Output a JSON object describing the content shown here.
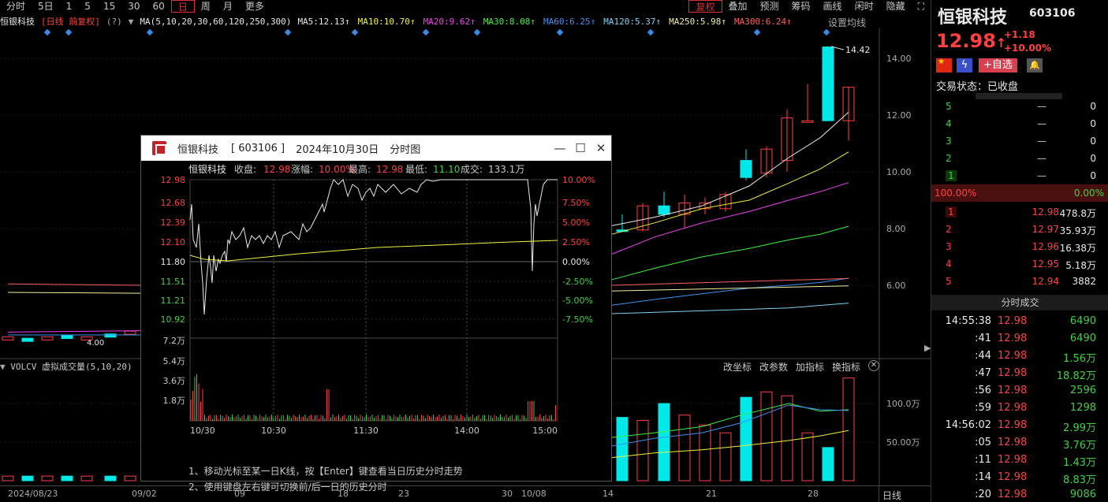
{
  "toolbar": {
    "left": [
      "分时",
      "5日",
      "1",
      "5",
      "15",
      "30",
      "60",
      "日",
      "周",
      "月",
      "更多"
    ],
    "active": "日",
    "right": [
      "复权",
      "叠加",
      "预测",
      "筹码",
      "画线",
      "闲时",
      "隐藏"
    ],
    "right_active": "复权"
  },
  "infoline": {
    "name": "恒银科技",
    "tags": "[日线 前复权]",
    "help": "(?)",
    "ma_label": "MA(5,10,20,30,60,120,250,300)",
    "ma": [
      {
        "label": "MA5:12.13↑",
        "color": "#e8e8e8"
      },
      {
        "label": "MA10:10.70↑",
        "color": "#f0f040"
      },
      {
        "label": "MA20:9.62↑",
        "color": "#f040f0"
      },
      {
        "label": "MA30:8.08↑",
        "color": "#40f040"
      },
      {
        "label": "MA60:6.25↑",
        "color": "#4090f0"
      },
      {
        "label": "MA120:5.37↑",
        "color": "#80d0f0"
      },
      {
        "label": "MA250:5.98↑",
        "color": "#f0f0a0"
      },
      {
        "label": "MA300:6.24↑",
        "color": "#ff6060"
      }
    ],
    "settings": "设置均线"
  },
  "price_axis": [
    "14.00",
    "12.00",
    "10.00",
    "8.00",
    "6.00"
  ],
  "volume_axis": [
    "100.0万",
    "50.00万"
  ],
  "max_label": "14.42",
  "min_label": "4.00",
  "volume": {
    "header": "VOLCV 虚拟成交量(5,10,20)",
    "buttons": [
      "改坐标",
      "改参数",
      "加指标",
      "换指标"
    ]
  },
  "dates": [
    "2024/08/23",
    "09/02",
    "09",
    "18",
    "23",
    "30",
    "10/08",
    "14",
    "21",
    "28"
  ],
  "bottom_tab": "日线",
  "popup": {
    "title_name": "恒银科技",
    "title_code": "[ 603106 ]",
    "title_date": "2024年10月30日",
    "title_kind": "分时图",
    "info": {
      "name": "恒银科技",
      "close_label": "收盘:",
      "close": "12.98",
      "chg_label": "涨幅:",
      "chg": "10.00%",
      "high_label": "最高:",
      "high": "12.98",
      "low_label": "最低:",
      "low": "11.10",
      "vol_label": "成交:",
      "vol": "133.1万"
    },
    "price_left": [
      "12.98",
      "12.68",
      "12.39",
      "12.10",
      "11.80",
      "11.51",
      "11.21",
      "10.92"
    ],
    "price_right": [
      "10.00%",
      "7.50%",
      "5.00%",
      "2.50%",
      "0.00%",
      "-2.50%",
      "-5.00%",
      "-7.50%"
    ],
    "vol_axis": [
      "7.2万",
      "5.4万",
      "3.6万",
      "1.8万"
    ],
    "times": [
      "10/30",
      "10:30",
      "11:30",
      "14:00",
      "15:00"
    ],
    "hint1": "1、移动光标至某一日K线，按【Enter】键查看当日历史分时走势",
    "hint2": "2、使用键盘左右键可切换前/后一日的历史分时"
  },
  "right": {
    "name": "恒银科技",
    "code": "603106",
    "price": "12.98",
    "arrow": "↑",
    "chg": "+1.18",
    "pct": "+10.00%",
    "addfav": "+自选",
    "status": "交易状态：已收盘",
    "sell": [
      {
        "lv": "5",
        "p": "—",
        "v": "0"
      },
      {
        "lv": "4",
        "p": "—",
        "v": "0"
      },
      {
        "lv": "3",
        "p": "—",
        "v": "0"
      },
      {
        "lv": "2",
        "p": "—",
        "v": "0"
      },
      {
        "lv": "1",
        "p": "—",
        "v": "0"
      }
    ],
    "ratio_left": "100.00%",
    "ratio_right": "0.00%",
    "buy": [
      {
        "lv": "1",
        "p": "12.98",
        "v": "478.8万"
      },
      {
        "lv": "2",
        "p": "12.97",
        "v": "35.93万"
      },
      {
        "lv": "3",
        "p": "12.96",
        "v": "16.38万"
      },
      {
        "lv": "4",
        "p": "12.95",
        "v": "5.18万"
      },
      {
        "lv": "5",
        "p": "12.94",
        "v": "3882"
      }
    ],
    "trade_header": "分时成交",
    "trades": [
      {
        "t": "14:55:38",
        "p": "12.98",
        "v": "6490"
      },
      {
        "t": ":41",
        "p": "12.98",
        "v": "6490"
      },
      {
        "t": ":44",
        "p": "12.98",
        "v": "1.56万"
      },
      {
        "t": ":47",
        "p": "12.98",
        "v": "18.82万"
      },
      {
        "t": ":56",
        "p": "12.98",
        "v": "2596"
      },
      {
        "t": ":59",
        "p": "12.98",
        "v": "1298"
      },
      {
        "t": "14:56:02",
        "p": "12.98",
        "v": "2.99万"
      },
      {
        "t": ":05",
        "p": "12.98",
        "v": "3.76万"
      },
      {
        "t": ":11",
        "p": "12.98",
        "v": "1.43万"
      },
      {
        "t": ":14",
        "p": "12.98",
        "v": "8.83万"
      },
      {
        "t": ":20",
        "p": "12.98",
        "v": "9086"
      }
    ]
  },
  "colors": {
    "up": "#ff4040",
    "down": "#00e8e8",
    "green": "#40d040"
  }
}
